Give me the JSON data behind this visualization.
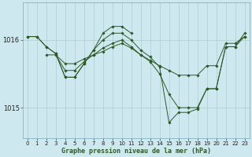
{
  "title": "Graphe pression niveau de la mer (hPa)",
  "bg_color": "#cde8ee",
  "grid_color": "#aacdd4",
  "line_color": "#2d5a27",
  "xlim": [
    -0.5,
    23.5
  ],
  "ylim": [
    1014.55,
    1016.55
  ],
  "yticks": [
    1015.0,
    1016.0
  ],
  "ytick_labels": [
    "1015",
    "1016"
  ],
  "xticks": [
    0,
    1,
    2,
    3,
    4,
    5,
    6,
    7,
    8,
    9,
    10,
    11,
    12,
    13,
    14,
    15,
    16,
    17,
    18,
    19,
    20,
    21,
    22,
    23
  ],
  "series": [
    {
      "x": [
        0,
        1,
        2,
        3,
        4,
        5,
        6,
        7,
        8,
        9,
        10,
        11
      ],
      "y": [
        1016.05,
        1016.05,
        1015.9,
        1015.8,
        1015.45,
        1015.45,
        1015.65,
        1015.85,
        1016.1,
        1016.2,
        1016.2,
        1016.1
      ]
    },
    {
      "x": [
        0,
        1,
        2,
        3,
        4,
        5,
        6,
        7,
        8,
        9,
        10,
        11,
        12,
        13,
        14,
        15,
        16,
        17,
        18,
        19,
        20,
        21,
        22,
        23
      ],
      "y": [
        1016.05,
        1016.05,
        1015.9,
        1015.8,
        1015.45,
        1015.45,
        1015.65,
        1015.85,
        1016.0,
        1016.1,
        1016.1,
        1016.0,
        1015.85,
        1015.75,
        1015.6,
        1014.78,
        1014.93,
        1014.93,
        1014.98,
        1015.28,
        1015.28,
        1015.9,
        1015.9,
        1016.1
      ]
    },
    {
      "x": [
        2,
        3,
        4,
        5,
        6,
        7,
        8,
        9,
        10,
        11,
        12,
        13,
        14,
        15,
        16,
        17,
        18,
        19,
        20,
        21,
        22,
        23
      ],
      "y": [
        1015.78,
        1015.78,
        1015.65,
        1015.65,
        1015.72,
        1015.78,
        1015.83,
        1015.9,
        1015.95,
        1015.88,
        1015.78,
        1015.7,
        1015.62,
        1015.55,
        1015.48,
        1015.48,
        1015.48,
        1015.62,
        1015.62,
        1015.95,
        1015.95,
        1016.05
      ]
    },
    {
      "x": [
        3,
        4,
        5,
        6,
        7,
        8,
        9,
        10,
        11,
        12,
        13,
        14,
        15,
        16,
        17,
        18,
        19,
        20,
        21,
        22,
        23
      ],
      "y": [
        1015.78,
        1015.55,
        1015.55,
        1015.68,
        1015.78,
        1015.88,
        1015.95,
        1016.0,
        1015.9,
        1015.78,
        1015.68,
        1015.5,
        1015.2,
        1015.0,
        1015.0,
        1015.0,
        1015.28,
        1015.28,
        1015.9,
        1015.9,
        1016.05
      ]
    }
  ]
}
